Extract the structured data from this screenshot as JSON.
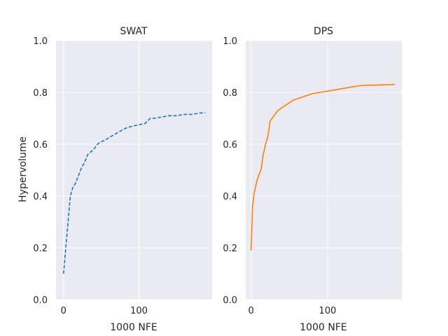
{
  "chart_data": [
    {
      "type": "line",
      "title": "SWAT",
      "xlabel": "1000 NFE",
      "ylabel": "Hypervolume",
      "xlim": [
        -10,
        197
      ],
      "ylim": [
        0,
        1
      ],
      "xticks": [
        0,
        100
      ],
      "yticks": [
        0.0,
        0.2,
        0.4,
        0.6,
        0.8,
        1.0
      ],
      "ytick_labels": [
        "0.0",
        "0.2",
        "0.4",
        "0.6",
        "0.8",
        "1.0"
      ],
      "grid": true,
      "series": [
        {
          "color": "#1f77b4",
          "linestyle": "dashed",
          "x": [
            0,
            3,
            6,
            9,
            12,
            16,
            20,
            24,
            28,
            32,
            36,
            40,
            45,
            50,
            55,
            60,
            66,
            72,
            78,
            85,
            92,
            100,
            108,
            115,
            120,
            130,
            140,
            150,
            160,
            170,
            180,
            188
          ],
          "y": [
            0.1,
            0.2,
            0.3,
            0.4,
            0.43,
            0.45,
            0.48,
            0.51,
            0.53,
            0.56,
            0.57,
            0.58,
            0.6,
            0.61,
            0.615,
            0.625,
            0.635,
            0.645,
            0.655,
            0.665,
            0.67,
            0.675,
            0.68,
            0.7,
            0.7,
            0.705,
            0.71,
            0.71,
            0.715,
            0.715,
            0.72,
            0.722
          ]
        }
      ]
    },
    {
      "type": "line",
      "title": "DPS",
      "xlabel": "1000 NFE",
      "ylabel": "",
      "xlim": [
        -7,
        197
      ],
      "ylim": [
        0,
        1
      ],
      "xticks": [
        0,
        100
      ],
      "yticks": [
        0.0,
        0.2,
        0.4,
        0.6,
        0.8,
        1.0
      ],
      "ytick_labels": [
        "0.0",
        "0.2",
        "0.4",
        "0.6",
        "0.8",
        "1.0"
      ],
      "grid": true,
      "series": [
        {
          "color": "#ff7f0e",
          "linestyle": "solid",
          "x": [
            0,
            2,
            4,
            7,
            10,
            13,
            16,
            19,
            22,
            25,
            30,
            35,
            40,
            45,
            50,
            55,
            60,
            70,
            80,
            90,
            100,
            110,
            120,
            130,
            140,
            150,
            160,
            170,
            180,
            188
          ],
          "y": [
            0.19,
            0.36,
            0.41,
            0.45,
            0.48,
            0.5,
            0.56,
            0.6,
            0.63,
            0.69,
            0.71,
            0.73,
            0.74,
            0.75,
            0.76,
            0.77,
            0.775,
            0.785,
            0.795,
            0.8,
            0.805,
            0.81,
            0.815,
            0.82,
            0.825,
            0.828,
            0.828,
            0.829,
            0.83,
            0.831
          ]
        }
      ]
    }
  ]
}
